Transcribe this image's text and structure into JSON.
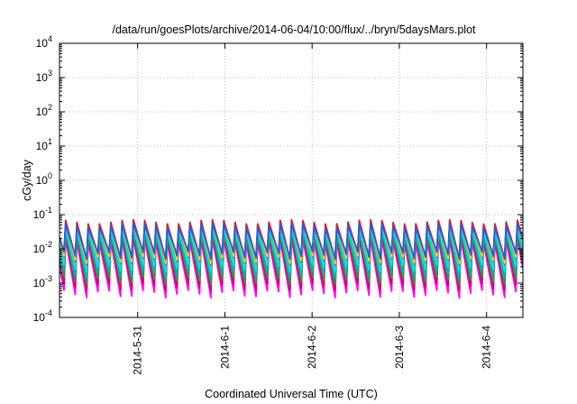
{
  "chart_data": {
    "type": "line",
    "title": "/data/run/goesPlots/archive/2014-06-04/10:00/flux/../bryn/5daysMars.plot",
    "xlabel": "Coordinated Universal Time (UTC)",
    "ylabel": "cGy/day",
    "yscale": "log",
    "ylim": [
      0.0001,
      10000
    ],
    "xlim": [
      "2014-05-30T02:30",
      "2014-06-04T10:00"
    ],
    "grid": true,
    "legend": "none",
    "y_ticks": [
      {
        "value": 0.0001,
        "base": "10",
        "exp": "-4"
      },
      {
        "value": 0.001,
        "base": "10",
        "exp": "-3"
      },
      {
        "value": 0.01,
        "base": "10",
        "exp": "-2"
      },
      {
        "value": 0.1,
        "base": "10",
        "exp": "-1"
      },
      {
        "value": 1,
        "base": "10",
        "exp": "0"
      },
      {
        "value": 10,
        "base": "10",
        "exp": "1"
      },
      {
        "value": 100,
        "base": "10",
        "exp": "2"
      },
      {
        "value": 1000,
        "base": "10",
        "exp": "3"
      },
      {
        "value": 10000,
        "base": "10",
        "exp": "4"
      }
    ],
    "x_ticks": [
      {
        "value": "2014-05-31T00:00",
        "label": "2014-5-31"
      },
      {
        "value": "2014-06-01T00:00",
        "label": "2014-6-1"
      },
      {
        "value": "2014-06-02T00:00",
        "label": "2014-6-2"
      },
      {
        "value": "2014-06-03T00:00",
        "label": "2014-6-3"
      },
      {
        "value": "2014-06-04T00:00",
        "label": "2014-6-4"
      }
    ],
    "series": [
      {
        "color": "#ff00ff",
        "peak": 0.018,
        "trough": 0.0005
      },
      {
        "color": "#d4006a",
        "peak": 0.023,
        "trough": 0.0008
      },
      {
        "color": "#2aa02a",
        "peak": 0.028,
        "trough": 0.0012
      },
      {
        "color": "#00b4b4",
        "peak": 0.034,
        "trough": 0.0018
      },
      {
        "color": "#00e5ee",
        "peak": 0.04,
        "trough": 0.0028
      },
      {
        "color": "#6a5acd",
        "peak": 0.05,
        "trough": 0.0045
      },
      {
        "color": "#e6e600",
        "peak": 0.052,
        "trough": 0.005
      },
      {
        "color": "#e8191e",
        "peak": 0.062,
        "trough": 0.0065
      },
      {
        "color": "#1e5fe6",
        "peak": 0.048,
        "trough": 0.007
      }
    ]
  }
}
